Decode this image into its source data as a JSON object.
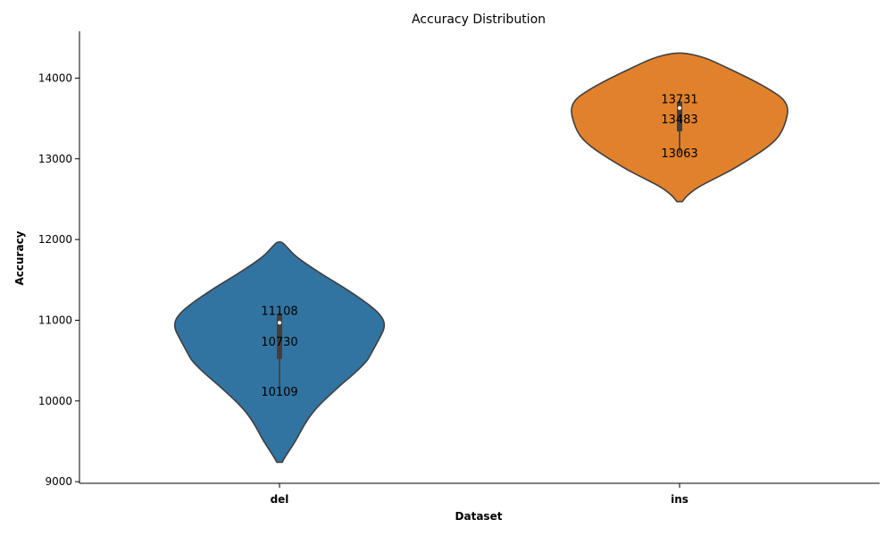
{
  "chart_data": {
    "type": "violin",
    "title": "Accuracy Distribution",
    "xlabel": "Dataset",
    "ylabel": "Accuracy",
    "ylim": [
      8980,
      14580
    ],
    "yticks": [
      9000,
      10000,
      11000,
      12000,
      13000,
      14000
    ],
    "grid": false,
    "categories": [
      "del",
      "ins"
    ],
    "colors": [
      "#3274a1",
      "#e1812c"
    ],
    "series": [
      {
        "category": "del",
        "min": 10109,
        "q1": 10520,
        "median": 10970,
        "q3": 11080,
        "max": 11108,
        "annotations": [
          11108,
          10730,
          10109
        ],
        "density": [
          [
            9240,
            0.06
          ],
          [
            9300,
            0.12
          ],
          [
            9400,
            0.24
          ],
          [
            9500,
            0.36
          ],
          [
            9600,
            0.46
          ],
          [
            9700,
            0.56
          ],
          [
            9800,
            0.68
          ],
          [
            9900,
            0.82
          ],
          [
            10000,
            1.0
          ],
          [
            10100,
            1.2
          ],
          [
            10200,
            1.4
          ],
          [
            10300,
            1.62
          ],
          [
            10400,
            1.82
          ],
          [
            10500,
            2.0
          ],
          [
            10600,
            2.1
          ],
          [
            10700,
            2.2
          ],
          [
            10800,
            2.3
          ],
          [
            10900,
            2.39
          ],
          [
            11000,
            2.38
          ],
          [
            11100,
            2.24
          ],
          [
            11200,
            2.02
          ],
          [
            11300,
            1.76
          ],
          [
            11400,
            1.48
          ],
          [
            11500,
            1.18
          ],
          [
            11600,
            0.88
          ],
          [
            11700,
            0.6
          ],
          [
            11800,
            0.35
          ],
          [
            11900,
            0.18
          ],
          [
            11970,
            0.06
          ]
        ]
      },
      {
        "category": "ins",
        "min": 13063,
        "q1": 13340,
        "median": 13630,
        "q3": 13710,
        "max": 13731,
        "annotations": [
          13731,
          13483,
          13063
        ],
        "density": [
          [
            12470,
            0.06
          ],
          [
            12550,
            0.18
          ],
          [
            12650,
            0.42
          ],
          [
            12750,
            0.78
          ],
          [
            12850,
            1.15
          ],
          [
            12950,
            1.45
          ],
          [
            13050,
            1.75
          ],
          [
            13150,
            2.02
          ],
          [
            13250,
            2.22
          ],
          [
            13350,
            2.34
          ],
          [
            13450,
            2.41
          ],
          [
            13550,
            2.46
          ],
          [
            13650,
            2.46
          ],
          [
            13750,
            2.35
          ],
          [
            13850,
            2.08
          ],
          [
            13950,
            1.75
          ],
          [
            14050,
            1.38
          ],
          [
            14150,
            1.0
          ],
          [
            14250,
            0.6
          ],
          [
            14310,
            0.16
          ]
        ]
      }
    ]
  }
}
